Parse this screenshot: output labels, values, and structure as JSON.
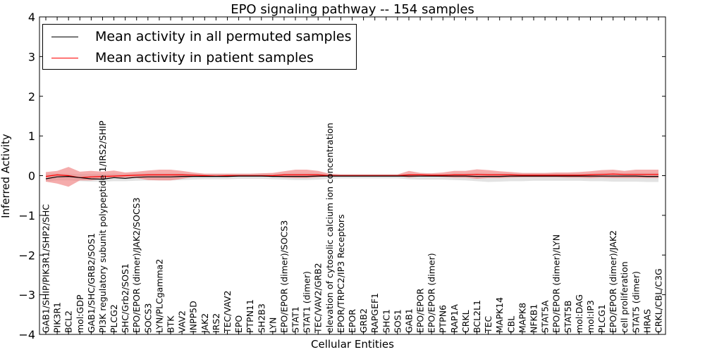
{
  "chart_data": {
    "type": "line",
    "title": "EPO signaling pathway -- 154 samples",
    "xlabel": "Cellular Entities",
    "ylabel": "Inferred Activity",
    "ylim": [
      -4,
      4
    ],
    "yticks": [
      {
        "value": -4,
        "label": "−4"
      },
      {
        "value": -3,
        "label": "−3"
      },
      {
        "value": -2,
        "label": "−2"
      },
      {
        "value": -1,
        "label": "−1"
      },
      {
        "value": 0,
        "label": "0"
      },
      {
        "value": 1,
        "label": "1"
      },
      {
        "value": 2,
        "label": "2"
      },
      {
        "value": 3,
        "label": "3"
      },
      {
        "value": 4,
        "label": "4"
      }
    ],
    "categories": [
      "GAB1/SHIP/PIK3R1/SHP2/SHC",
      "PIK3R1",
      "BCL2",
      "mol:GDP",
      "GAB1/SHC/GRB2/SOS1",
      "PI3K regulatory subunit polypeptide 1/IRS2/SHIP",
      "PLCG2",
      "SHC/Grb2/SOS1",
      "EPO/EPOR (dimer)/JAK2/SOCS3",
      "SOCS3",
      "LYN/PLCgamma2",
      "BTK",
      "VAV2",
      "INPP5D",
      "JAK2",
      "IRS2",
      "TEC/VAV2",
      "EPO",
      "PTPN11",
      "SH2B3",
      "LYN",
      "EPO/EPOR (dimer)/SOCS3",
      "STAT1",
      "STAT1 (dimer)",
      "TEC/VAV2/GRB2",
      "elevation of cytosolic calcium ion concentration",
      "EPOR/TRPC2/IP3 Receptors",
      "EPOR",
      "GRB2",
      "RAPGEF1",
      "SHC1",
      "SOS1",
      "GAB1",
      "EPO/EPOR",
      "EPO/EPOR (dimer)",
      "PTPN6",
      "RAP1A",
      "CRKL",
      "BCL2L1",
      "TEC",
      "MAPK14",
      "CBL",
      "MAPK8",
      "NFKB1",
      "STAT5A",
      "EPO/EPOR (dimer)/LYN",
      "STAT5B",
      "mol:DAG",
      "mol:IP3",
      "PLCG1",
      "EPO/EPOR (dimer)/JAK2",
      "cell proliferation",
      "STAT5 (dimer)",
      "HRAS",
      "CRKL/CBL/C3G"
    ],
    "series": [
      {
        "name": "Mean activity in all permuted samples",
        "color": "#000000",
        "values": [
          -0.08,
          -0.03,
          -0.02,
          -0.05,
          -0.08,
          -0.09,
          -0.05,
          -0.07,
          -0.04,
          -0.03,
          -0.03,
          -0.03,
          -0.02,
          -0.02,
          -0.02,
          -0.02,
          -0.02,
          -0.01,
          -0.01,
          -0.01,
          -0.02,
          -0.02,
          -0.02,
          -0.02,
          -0.01,
          -0.01,
          -0.01,
          -0.01,
          -0.01,
          -0.01,
          -0.01,
          -0.01,
          -0.01,
          -0.01,
          -0.01,
          -0.01,
          -0.01,
          -0.01,
          -0.02,
          -0.02,
          -0.02,
          -0.01,
          -0.01,
          -0.01,
          -0.01,
          -0.01,
          -0.01,
          -0.01,
          -0.01,
          -0.01,
          -0.01,
          -0.01,
          -0.01,
          -0.02,
          -0.02
        ],
        "band_upper": [
          0.05,
          0.06,
          0.05,
          0.04,
          0.04,
          0.04,
          0.05,
          0.05,
          0.06,
          0.06,
          0.06,
          0.06,
          0.06,
          0.05,
          0.05,
          0.05,
          0.05,
          0.05,
          0.05,
          0.05,
          0.05,
          0.06,
          0.07,
          0.07,
          0.06,
          0.05,
          0.04,
          0.04,
          0.04,
          0.04,
          0.04,
          0.04,
          0.05,
          0.05,
          0.05,
          0.05,
          0.06,
          0.06,
          0.07,
          0.07,
          0.07,
          0.06,
          0.06,
          0.06,
          0.06,
          0.06,
          0.06,
          0.06,
          0.06,
          0.07,
          0.07,
          0.07,
          0.07,
          0.07,
          0.07
        ],
        "band_lower": [
          -0.15,
          -0.12,
          -0.12,
          -0.14,
          -0.15,
          -0.15,
          -0.14,
          -0.14,
          -0.13,
          -0.12,
          -0.12,
          -0.12,
          -0.11,
          -0.1,
          -0.09,
          -0.09,
          -0.09,
          -0.08,
          -0.08,
          -0.08,
          -0.09,
          -0.1,
          -0.11,
          -0.11,
          -0.1,
          -0.08,
          -0.07,
          -0.07,
          -0.07,
          -0.07,
          -0.07,
          -0.07,
          -0.09,
          -0.1,
          -0.1,
          -0.1,
          -0.11,
          -0.12,
          -0.14,
          -0.16,
          -0.15,
          -0.14,
          -0.14,
          -0.13,
          -0.13,
          -0.13,
          -0.13,
          -0.13,
          -0.14,
          -0.14,
          -0.15,
          -0.15,
          -0.15,
          -0.16,
          -0.16
        ]
      },
      {
        "name": "Mean activity in patient samples",
        "color": "#ff0000",
        "values": [
          -0.02,
          0.02,
          0.0,
          -0.05,
          -0.03,
          -0.02,
          -0.01,
          0.0,
          0.01,
          0.02,
          0.02,
          0.02,
          0.02,
          0.01,
          0.0,
          -0.01,
          0.0,
          0.0,
          0.0,
          0.0,
          0.0,
          0.02,
          0.02,
          0.02,
          0.02,
          0.0,
          0.0,
          0.0,
          0.0,
          0.0,
          0.0,
          0.0,
          0.02,
          0.02,
          0.01,
          0.01,
          0.02,
          0.02,
          0.03,
          0.02,
          0.02,
          0.02,
          0.01,
          0.01,
          0.01,
          0.01,
          0.01,
          0.01,
          0.02,
          0.03,
          0.04,
          0.03,
          0.03,
          0.03,
          0.03
        ],
        "band_upper": [
          0.09,
          0.12,
          0.22,
          0.1,
          0.12,
          0.1,
          0.13,
          0.08,
          0.1,
          0.13,
          0.15,
          0.15,
          0.12,
          0.08,
          0.05,
          0.05,
          0.05,
          0.05,
          0.05,
          0.06,
          0.07,
          0.11,
          0.15,
          0.15,
          0.12,
          0.05,
          0.03,
          0.03,
          0.03,
          0.03,
          0.03,
          0.03,
          0.12,
          0.07,
          0.06,
          0.08,
          0.12,
          0.12,
          0.16,
          0.14,
          0.11,
          0.09,
          0.07,
          0.07,
          0.07,
          0.08,
          0.08,
          0.09,
          0.11,
          0.14,
          0.15,
          0.12,
          0.15,
          0.15,
          0.15
        ],
        "band_lower": [
          -0.15,
          -0.2,
          -0.28,
          -0.12,
          -0.12,
          -0.08,
          -0.06,
          -0.05,
          -0.06,
          -0.11,
          -0.12,
          -0.12,
          -0.08,
          -0.03,
          0.0,
          -0.01,
          0.0,
          0.0,
          0.0,
          0.0,
          -0.02,
          -0.05,
          -0.06,
          -0.06,
          -0.04,
          0.0,
          0.0,
          0.0,
          0.0,
          0.0,
          0.0,
          0.0,
          -0.05,
          -0.02,
          -0.02,
          -0.03,
          -0.05,
          -0.05,
          -0.08,
          -0.06,
          -0.06,
          -0.05,
          -0.04,
          -0.04,
          -0.04,
          -0.04,
          -0.05,
          -0.05,
          -0.06,
          -0.05,
          -0.06,
          -0.06,
          -0.06,
          -0.06,
          -0.06
        ]
      }
    ],
    "legend_position": "top-left",
    "grid": false
  }
}
